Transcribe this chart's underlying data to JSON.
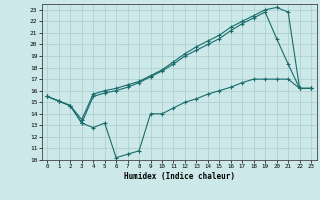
{
  "xlabel": "Humidex (Indice chaleur)",
  "bg_color": "#cce8e8",
  "grid_color": "#aacccc",
  "line_color": "#1a6b6b",
  "xlim": [
    -0.5,
    23.5
  ],
  "ylim": [
    10,
    23.5
  ],
  "yticks": [
    10,
    11,
    12,
    13,
    14,
    15,
    16,
    17,
    18,
    19,
    20,
    21,
    22,
    23
  ],
  "xticks": [
    0,
    1,
    2,
    3,
    4,
    5,
    6,
    7,
    8,
    9,
    10,
    11,
    12,
    13,
    14,
    15,
    16,
    17,
    18,
    19,
    20,
    21,
    22,
    23
  ],
  "line1_x": [
    0,
    1,
    2,
    3,
    4,
    5,
    6,
    7,
    8,
    9,
    10,
    11,
    12,
    13,
    14,
    15,
    16,
    17,
    18,
    19,
    20,
    21,
    22,
    23
  ],
  "line1_y": [
    15.5,
    15.1,
    14.7,
    13.2,
    12.8,
    13.2,
    10.2,
    10.5,
    10.8,
    14.0,
    14.0,
    14.5,
    15.0,
    15.3,
    15.7,
    16.0,
    16.3,
    16.7,
    17.0,
    17.0,
    17.0,
    17.0,
    16.2,
    16.2
  ],
  "line2_x": [
    0,
    1,
    2,
    3,
    4,
    5,
    6,
    7,
    8,
    9,
    10,
    11,
    12,
    13,
    14,
    15,
    16,
    17,
    18,
    19,
    20,
    21,
    22,
    23
  ],
  "line2_y": [
    15.5,
    15.1,
    14.7,
    13.2,
    15.5,
    15.8,
    16.0,
    16.3,
    16.7,
    17.2,
    17.7,
    18.3,
    19.0,
    19.5,
    20.0,
    20.5,
    21.2,
    21.8,
    22.3,
    22.8,
    20.5,
    18.3,
    16.2,
    16.2
  ],
  "line3_x": [
    0,
    1,
    2,
    3,
    4,
    5,
    6,
    7,
    8,
    9,
    10,
    11,
    12,
    13,
    14,
    15,
    16,
    17,
    18,
    19,
    20,
    21,
    22,
    23
  ],
  "line3_y": [
    15.5,
    15.1,
    14.7,
    13.5,
    15.7,
    16.0,
    16.2,
    16.5,
    16.8,
    17.3,
    17.8,
    18.5,
    19.2,
    19.8,
    20.3,
    20.8,
    21.5,
    22.0,
    22.5,
    23.0,
    23.2,
    22.8,
    16.2,
    16.2
  ]
}
